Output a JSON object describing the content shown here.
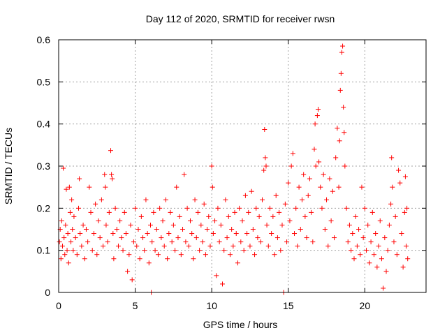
{
  "chart_data": {
    "type": "scatter",
    "title": "Day 112 of 2020, SRMTID for receiver rwsn",
    "xlabel": "GPS time / hours",
    "ylabel": "SRMTID / TECUs",
    "xlim": [
      0,
      24
    ],
    "ylim": [
      0,
      0.6
    ],
    "xticks": [
      0,
      5,
      10,
      15,
      20
    ],
    "xtick_labels": [
      "0",
      "5",
      "10",
      "15",
      "20"
    ],
    "yticks": [
      0,
      0.1,
      0.2,
      0.3,
      0.4,
      0.5,
      0.6
    ],
    "ytick_labels": [
      "0",
      "0.1",
      "0.2",
      "0.3",
      "0.4",
      "0.5",
      "0.6"
    ],
    "grid": true,
    "marker": "+",
    "color": "#ff0000",
    "series": [
      {
        "name": "SRMTID",
        "points": [
          [
            0.05,
            0.12
          ],
          [
            0.1,
            0.15
          ],
          [
            0.15,
            0.08
          ],
          [
            0.2,
            0.17
          ],
          [
            0.25,
            0.11
          ],
          [
            0.3,
            0.295
          ],
          [
            0.35,
            0.13
          ],
          [
            0.4,
            0.09
          ],
          [
            0.45,
            0.16
          ],
          [
            0.5,
            0.245
          ],
          [
            0.55,
            0.1
          ],
          [
            0.6,
            0.14
          ],
          [
            0.65,
            0.07
          ],
          [
            0.7,
            0.25
          ],
          [
            0.75,
            0.19
          ],
          [
            0.8,
            0.12
          ],
          [
            0.85,
            0.22
          ],
          [
            0.9,
            0.15
          ],
          [
            0.95,
            0.1
          ],
          [
            1.0,
            0.18
          ],
          [
            1.1,
            0.13
          ],
          [
            1.2,
            0.09
          ],
          [
            1.3,
            0.2
          ],
          [
            1.35,
            0.27
          ],
          [
            1.4,
            0.14
          ],
          [
            1.5,
            0.11
          ],
          [
            1.6,
            0.16
          ],
          [
            1.7,
            0.08
          ],
          [
            1.8,
            0.15
          ],
          [
            1.9,
            0.12
          ],
          [
            2.0,
            0.25
          ],
          [
            2.1,
            0.19
          ],
          [
            2.2,
            0.1
          ],
          [
            2.3,
            0.14
          ],
          [
            2.4,
            0.21
          ],
          [
            2.5,
            0.09
          ],
          [
            2.6,
            0.17
          ],
          [
            2.7,
            0.13
          ],
          [
            2.8,
            0.22
          ],
          [
            2.9,
            0.11
          ],
          [
            3.0,
            0.28
          ],
          [
            3.05,
            0.25
          ],
          [
            3.1,
            0.16
          ],
          [
            3.2,
            0.12
          ],
          [
            3.3,
            0.19
          ],
          [
            3.4,
            0.337
          ],
          [
            3.45,
            0.28
          ],
          [
            3.5,
            0.27
          ],
          [
            3.55,
            0.14
          ],
          [
            3.6,
            0.08
          ],
          [
            3.7,
            0.2
          ],
          [
            3.8,
            0.15
          ],
          [
            3.9,
            0.11
          ],
          [
            4.0,
            0.17
          ],
          [
            4.1,
            0.13
          ],
          [
            4.2,
            0.1
          ],
          [
            4.3,
            0.19
          ],
          [
            4.4,
            0.14
          ],
          [
            4.5,
            0.05
          ],
          [
            4.6,
            0.09
          ],
          [
            4.7,
            0.16
          ],
          [
            4.8,
            0.03
          ],
          [
            4.9,
            0.12
          ],
          [
            5.0,
            0.2
          ],
          [
            5.1,
            0.11
          ],
          [
            5.2,
            0.15
          ],
          [
            5.3,
            0.08
          ],
          [
            5.4,
            0.18
          ],
          [
            5.5,
            0.13
          ],
          [
            5.6,
            0.1
          ],
          [
            5.7,
            0.22
          ],
          [
            5.8,
            0.14
          ],
          [
            5.9,
            0.07
          ],
          [
            6.0,
            0.16
          ],
          [
            6.05,
            0.0
          ],
          [
            6.1,
            0.12
          ],
          [
            6.2,
            0.19
          ],
          [
            6.3,
            0.1
          ],
          [
            6.4,
            0.15
          ],
          [
            6.5,
            0.09
          ],
          [
            6.6,
            0.2
          ],
          [
            6.7,
            0.13
          ],
          [
            6.8,
            0.17
          ],
          [
            6.9,
            0.11
          ],
          [
            7.0,
            0.22
          ],
          [
            7.1,
            0.08
          ],
          [
            7.2,
            0.14
          ],
          [
            7.3,
            0.19
          ],
          [
            7.4,
            0.12
          ],
          [
            7.5,
            0.16
          ],
          [
            7.6,
            0.1
          ],
          [
            7.7,
            0.25
          ],
          [
            7.8,
            0.13
          ],
          [
            7.9,
            0.18
          ],
          [
            8.0,
            0.09
          ],
          [
            8.1,
            0.15
          ],
          [
            8.2,
            0.28
          ],
          [
            8.3,
            0.12
          ],
          [
            8.4,
            0.2
          ],
          [
            8.5,
            0.11
          ],
          [
            8.6,
            0.17
          ],
          [
            8.7,
            0.14
          ],
          [
            8.8,
            0.08
          ],
          [
            8.9,
            0.22
          ],
          [
            9.0,
            0.13
          ],
          [
            9.1,
            0.19
          ],
          [
            9.2,
            0.1
          ],
          [
            9.3,
            0.16
          ],
          [
            9.4,
            0.12
          ],
          [
            9.5,
            0.21
          ],
          [
            9.6,
            0.09
          ],
          [
            9.7,
            0.15
          ],
          [
            9.8,
            0.18
          ],
          [
            9.9,
            0.11
          ],
          [
            10.0,
            0.3
          ],
          [
            10.05,
            0.25
          ],
          [
            10.1,
            0.14
          ],
          [
            10.2,
            0.17
          ],
          [
            10.3,
            0.04
          ],
          [
            10.4,
            0.2
          ],
          [
            10.5,
            0.12
          ],
          [
            10.6,
            0.16
          ],
          [
            10.7,
            0.02
          ],
          [
            10.8,
            0.1
          ],
          [
            10.9,
            0.22
          ],
          [
            11.0,
            0.13
          ],
          [
            11.1,
            0.18
          ],
          [
            11.2,
            0.09
          ],
          [
            11.3,
            0.15
          ],
          [
            11.4,
            0.11
          ],
          [
            11.5,
            0.19
          ],
          [
            11.6,
            0.14
          ],
          [
            11.7,
            0.07
          ],
          [
            11.8,
            0.2
          ],
          [
            11.9,
            0.12
          ],
          [
            12.0,
            0.17
          ],
          [
            12.1,
            0.1
          ],
          [
            12.2,
            0.23
          ],
          [
            12.3,
            0.14
          ],
          [
            12.4,
            0.19
          ],
          [
            12.5,
            0.11
          ],
          [
            12.6,
            0.24
          ],
          [
            12.7,
            0.15
          ],
          [
            12.8,
            0.09
          ],
          [
            12.9,
            0.2
          ],
          [
            13.0,
            0.13
          ],
          [
            13.1,
            0.18
          ],
          [
            13.2,
            0.12
          ],
          [
            13.3,
            0.22
          ],
          [
            13.4,
            0.29
          ],
          [
            13.45,
            0.387
          ],
          [
            13.5,
            0.32
          ],
          [
            13.55,
            0.3
          ],
          [
            13.6,
            0.16
          ],
          [
            13.7,
            0.11
          ],
          [
            13.8,
            0.2
          ],
          [
            13.9,
            0.14
          ],
          [
            14.0,
            0.18
          ],
          [
            14.1,
            0.09
          ],
          [
            14.2,
            0.23
          ],
          [
            14.3,
            0.13
          ],
          [
            14.4,
            0.19
          ],
          [
            14.5,
            0.1
          ],
          [
            14.6,
            0.16
          ],
          [
            14.7,
            0.0
          ],
          [
            14.8,
            0.21
          ],
          [
            14.9,
            0.12
          ],
          [
            15.0,
            0.26
          ],
          [
            15.1,
            0.17
          ],
          [
            15.2,
            0.3
          ],
          [
            15.3,
            0.33
          ],
          [
            15.4,
            0.14
          ],
          [
            15.5,
            0.2
          ],
          [
            15.6,
            0.11
          ],
          [
            15.7,
            0.25
          ],
          [
            15.8,
            0.15
          ],
          [
            15.9,
            0.22
          ],
          [
            16.0,
            0.28
          ],
          [
            16.1,
            0.18
          ],
          [
            16.2,
            0.13
          ],
          [
            16.3,
            0.23
          ],
          [
            16.4,
            0.27
          ],
          [
            16.5,
            0.19
          ],
          [
            16.6,
            0.12
          ],
          [
            16.7,
            0.34
          ],
          [
            16.75,
            0.4
          ],
          [
            16.8,
            0.3
          ],
          [
            16.9,
            0.42
          ],
          [
            16.95,
            0.435
          ],
          [
            17.0,
            0.31
          ],
          [
            17.1,
            0.25
          ],
          [
            17.2,
            0.2
          ],
          [
            17.3,
            0.28
          ],
          [
            17.4,
            0.15
          ],
          [
            17.5,
            0.22
          ],
          [
            17.6,
            0.11
          ],
          [
            17.7,
            0.27
          ],
          [
            17.8,
            0.17
          ],
          [
            17.9,
            0.24
          ],
          [
            18.0,
            0.13
          ],
          [
            18.1,
            0.32
          ],
          [
            18.2,
            0.39
          ],
          [
            18.3,
            0.25
          ],
          [
            18.35,
            0.36
          ],
          [
            18.4,
            0.48
          ],
          [
            18.45,
            0.52
          ],
          [
            18.5,
            0.57
          ],
          [
            18.55,
            0.585
          ],
          [
            18.6,
            0.44
          ],
          [
            18.65,
            0.38
          ],
          [
            18.7,
            0.3
          ],
          [
            18.8,
            0.2
          ],
          [
            18.9,
            0.12
          ],
          [
            19.0,
            0.16
          ],
          [
            19.1,
            0.1
          ],
          [
            19.2,
            0.14
          ],
          [
            19.3,
            0.08
          ],
          [
            19.4,
            0.18
          ],
          [
            19.5,
            0.11
          ],
          [
            19.6,
            0.15
          ],
          [
            19.7,
            0.09
          ],
          [
            19.8,
            0.25
          ],
          [
            19.9,
            0.13
          ],
          [
            20.0,
            0.2
          ],
          [
            20.1,
            0.1
          ],
          [
            20.2,
            0.16
          ],
          [
            20.3,
            0.07
          ],
          [
            20.4,
            0.12
          ],
          [
            20.5,
            0.19
          ],
          [
            20.6,
            0.09
          ],
          [
            20.7,
            0.14
          ],
          [
            20.8,
            0.06
          ],
          [
            20.9,
            0.11
          ],
          [
            21.0,
            0.17
          ],
          [
            21.1,
            0.08
          ],
          [
            21.2,
            0.01
          ],
          [
            21.3,
            0.13
          ],
          [
            21.4,
            0.05
          ],
          [
            21.5,
            0.1
          ],
          [
            21.6,
            0.16
          ],
          [
            21.7,
            0.21
          ],
          [
            21.75,
            0.32
          ],
          [
            21.8,
            0.25
          ],
          [
            21.9,
            0.12
          ],
          [
            22.0,
            0.18
          ],
          [
            22.1,
            0.09
          ],
          [
            22.2,
            0.29
          ],
          [
            22.3,
            0.26
          ],
          [
            22.4,
            0.14
          ],
          [
            22.5,
            0.06
          ],
          [
            22.6,
            0.19
          ],
          [
            22.65,
            0.275
          ],
          [
            22.7,
            0.11
          ],
          [
            22.75,
            0.2
          ],
          [
            22.8,
            0.08
          ]
        ]
      }
    ]
  }
}
